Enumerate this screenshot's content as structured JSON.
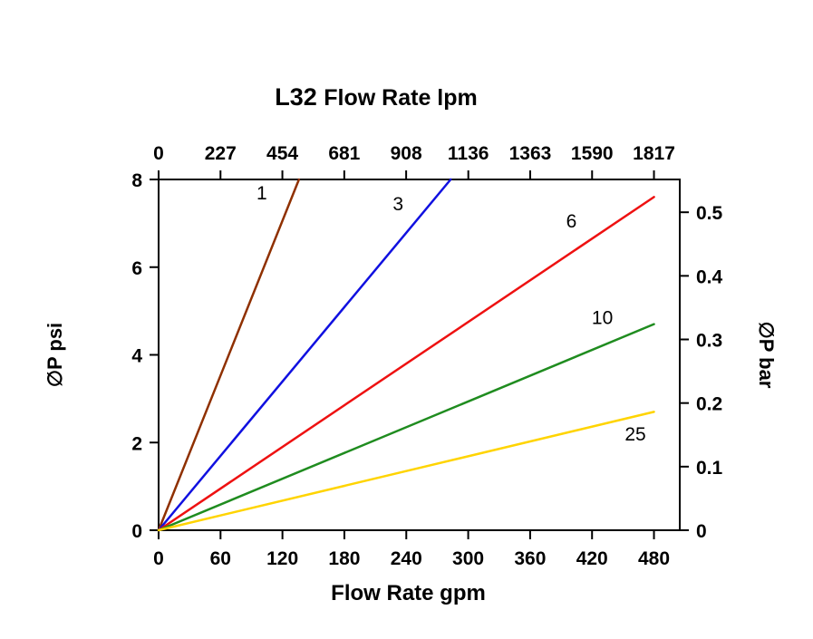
{
  "page": {
    "background": "#ffffff"
  },
  "chart_data": {
    "type": "line",
    "title": {
      "model": "L32",
      "text": "Flow Rate lpm"
    },
    "axes": {
      "top": {
        "unit": "lpm",
        "ticks": [
          0,
          227,
          454,
          681,
          908,
          1136,
          1363,
          1590,
          1817
        ]
      },
      "bottom": {
        "title": "Flow Rate gpm",
        "unit": "gpm",
        "ticks": [
          0,
          60,
          120,
          180,
          240,
          300,
          360,
          420,
          480
        ],
        "range": [
          0,
          505
        ]
      },
      "left": {
        "title": "∅P psi",
        "unit": "psi",
        "ticks": [
          0,
          2,
          4,
          6,
          8
        ],
        "range": [
          0,
          8
        ]
      },
      "right": {
        "title": "∅P bar",
        "unit": "bar",
        "ticks": [
          0,
          0.1,
          0.2,
          0.3,
          0.4,
          0.5
        ]
      }
    },
    "grid": "off",
    "legend": "inline-labels",
    "series": [
      {
        "name": "1",
        "color": "#8f3000",
        "points": [
          [
            0,
            0
          ],
          [
            136,
            8
          ]
        ],
        "label_pos": [
          100,
          7.55
        ]
      },
      {
        "name": "3",
        "color": "#1010e0",
        "points": [
          [
            0,
            0
          ],
          [
            283,
            8
          ]
        ],
        "label_pos": [
          232,
          7.3
        ]
      },
      {
        "name": "6",
        "color": "#ee1111",
        "points": [
          [
            0,
            0
          ],
          [
            480,
            7.6
          ]
        ],
        "label_pos": [
          400,
          6.9
        ]
      },
      {
        "name": "10",
        "color": "#1f8c1f",
        "points": [
          [
            0,
            0
          ],
          [
            480,
            4.7
          ]
        ],
        "label_pos": [
          430,
          4.7
        ]
      },
      {
        "name": "25",
        "color": "#ffd400",
        "points": [
          [
            0,
            0
          ],
          [
            240,
            1.35
          ],
          [
            480,
            2.7
          ]
        ],
        "label_pos": [
          462,
          2.05
        ]
      }
    ]
  }
}
